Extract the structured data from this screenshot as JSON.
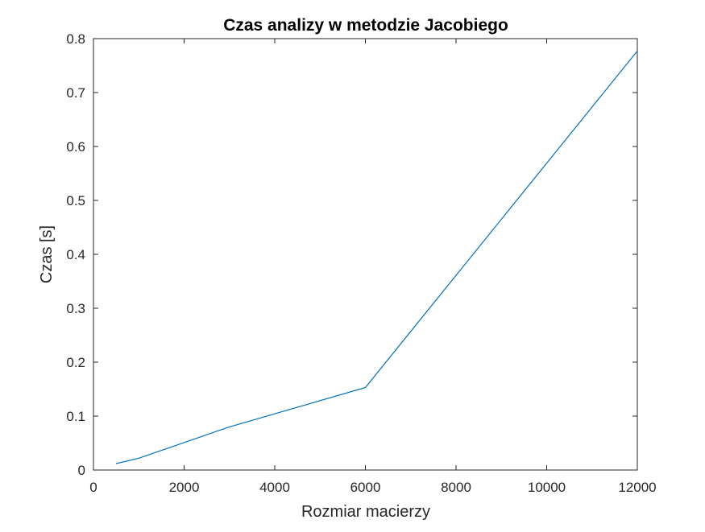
{
  "chart_data": {
    "type": "line",
    "title": "Czas analizy w metodzie Jacobiego",
    "xlabel": "Rozmiar macierzy",
    "ylabel": "Czas [s]",
    "xlim": [
      0,
      12000
    ],
    "ylim": [
      0,
      0.8
    ],
    "xticks": [
      0,
      2000,
      4000,
      6000,
      8000,
      10000,
      12000
    ],
    "xtick_labels": [
      "0",
      "2000",
      "4000",
      "6000",
      "8000",
      "10000",
      "12000"
    ],
    "yticks": [
      0,
      0.1,
      0.2,
      0.3,
      0.4,
      0.5,
      0.6,
      0.7,
      0.8
    ],
    "ytick_labels": [
      "0",
      "0.1",
      "0.2",
      "0.3",
      "0.4",
      "0.5",
      "0.6",
      "0.7",
      "0.8"
    ],
    "grid": false,
    "legend": "none",
    "series": [
      {
        "color": "#0072BD",
        "x": [
          500,
          1000,
          3000,
          6000,
          12000
        ],
        "y": [
          0.012,
          0.022,
          0.08,
          0.153,
          0.777
        ]
      }
    ]
  }
}
